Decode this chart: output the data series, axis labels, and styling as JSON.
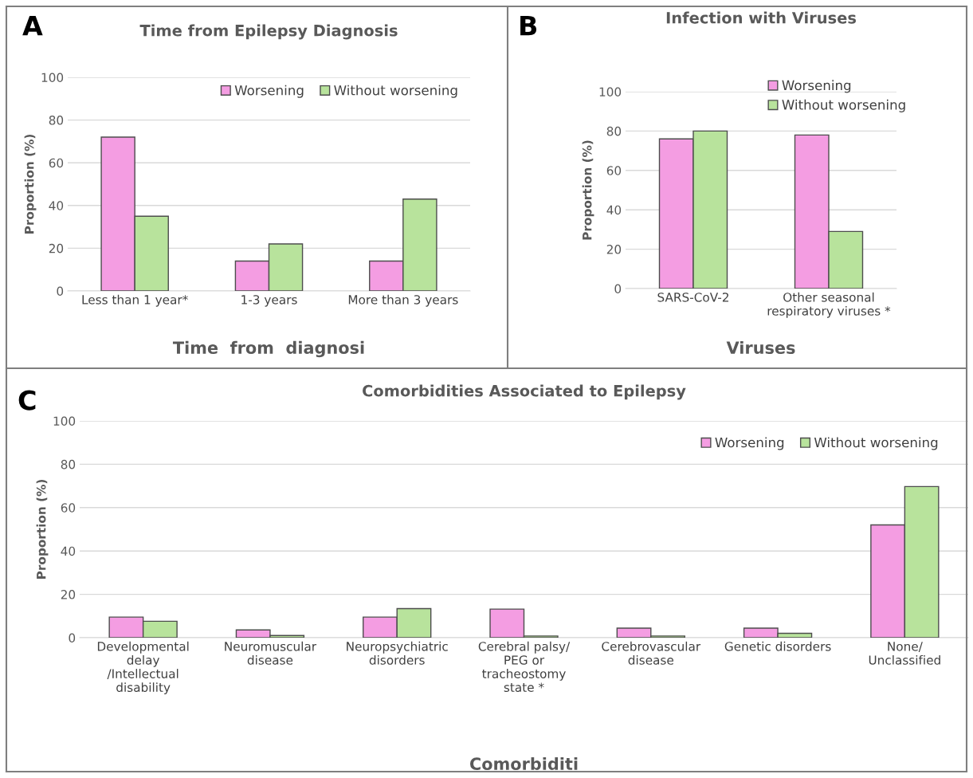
{
  "chart_data": [
    {
      "type": "bar",
      "title": "Time from Epilepsy Diagnosis",
      "xlabel": "Time  from  diagnosi",
      "ylabel": "Proportion (%)",
      "annotations": [
        "A"
      ],
      "categories": [
        "Less than 1 year*",
        "1-3 years",
        "More than 3 years"
      ],
      "series": [
        {
          "name": "Worsening",
          "color": "#f49de2",
          "values": [
            72,
            14,
            14
          ]
        },
        {
          "name": "Without worsening",
          "color": "#b8e39c",
          "values": [
            35,
            22,
            43
          ]
        }
      ],
      "ylim": [
        0,
        100
      ],
      "yticks": [
        0,
        20,
        40,
        60,
        80,
        100
      ],
      "grid": "y",
      "legend": "top right"
    },
    {
      "type": "bar",
      "title": "Infection with Viruses",
      "xlabel": "Viruses",
      "ylabel": "Proportion (%)",
      "annotations": [
        "B"
      ],
      "categories": [
        "SARS-CoV-2",
        "Other seasonal\nrespiratory viruses *"
      ],
      "series": [
        {
          "name": "Worsening",
          "color": "#f49de2",
          "values": [
            76,
            78
          ]
        },
        {
          "name": "Without worsening",
          "color": "#b8e39c",
          "values": [
            80,
            29
          ]
        }
      ],
      "ylim": [
        0,
        100
      ],
      "yticks": [
        0,
        20,
        40,
        60,
        80,
        100
      ],
      "grid": "y",
      "legend": "top right"
    },
    {
      "type": "bar",
      "title": "Comorbidities Associated to Epilepsy",
      "xlabel": "Comorbiditi",
      "ylabel": "Proportion (%)",
      "annotations": [
        "C"
      ],
      "categories": [
        "Developmental\ndelay\n/Intellectual\ndisability",
        "Neuromuscular\ndisease",
        "Neuropsychiatric\ndisorders",
        "Cerebral palsy/\nPEG or\ntracheostomy\nstate *",
        "Cerebrovascular\ndisease",
        "Genetic disorders",
        "None/\nUnclassified"
      ],
      "series": [
        {
          "name": "Worsening",
          "color": "#f49de2",
          "values": [
            9.5,
            3.6,
            9.5,
            13.2,
            4.4,
            4.4,
            52
          ]
        },
        {
          "name": "Without worsening",
          "color": "#b8e39c",
          "values": [
            7.6,
            1,
            13.4,
            0.8,
            0.8,
            2,
            69.7
          ]
        }
      ],
      "ylim": [
        0,
        100
      ],
      "yticks": [
        0,
        20,
        40,
        60,
        80,
        100
      ],
      "grid": "y",
      "legend": "top right"
    }
  ]
}
